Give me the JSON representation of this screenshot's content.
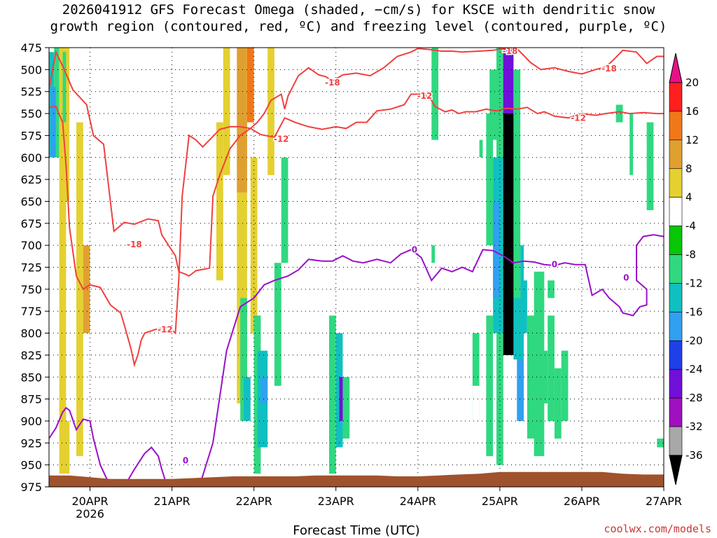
{
  "title": {
    "line1": "2026041912 GFS Forecast Omega (shaded, −cm/s) for KSCE with dendritic snow",
    "line2": "growth region (contoured, red, ºC) and freezing level (contoured, purple, ºC)"
  },
  "credit": "coolwx.com/models",
  "colors": {
    "dgz": "#f04040",
    "freezing": "#9a10c8",
    "ground": "#a0522d",
    "grid": "#000000"
  },
  "chart_data": {
    "type": "heatmap",
    "title": "2026041912 GFS Forecast Omega (shaded, −cm/s) for KSCE with dendritic snow growth region (contoured, red, ºC) and freezing level (contoured, purple, ºC)",
    "xlabel": "Forecast Time (UTC)",
    "ylabel": "",
    "x_ticks": [
      "20APR",
      "21APR",
      "22APR",
      "23APR",
      "24APR",
      "25APR",
      "26APR",
      "27APR"
    ],
    "x_tick_hours": [
      12,
      36,
      60,
      84,
      108,
      132,
      156,
      180
    ],
    "x_sublabel": "2026",
    "xlim_hours": [
      0,
      180
    ],
    "y_ticks": [
      475,
      500,
      525,
      550,
      575,
      600,
      625,
      650,
      675,
      700,
      725,
      750,
      775,
      800,
      825,
      850,
      875,
      900,
      925,
      950,
      975
    ],
    "ylim_hpa": [
      475,
      975
    ],
    "y_reversed": true,
    "grid": true,
    "colorbar": {
      "ticks": [
        20,
        16,
        12,
        8,
        4,
        -4,
        -8,
        -12,
        -16,
        -20,
        -24,
        -28,
        -32,
        -36
      ],
      "colors": [
        "#ff1f1f",
        "#f07818",
        "#e0a030",
        "#e4d030",
        "#ffffff",
        "#06c806",
        "#30d880",
        "#10c0c0",
        "#30a0f0",
        "#1f40e8",
        "#7010d8",
        "#a010c0",
        "#a8a8a8",
        "#000000"
      ],
      "top_color": "#e8108a"
    },
    "contours": [
      {
        "name": "dgz_minus18",
        "label": "-18",
        "color": "#f04040",
        "points": [
          [
            0,
            522
          ],
          [
            2,
            480
          ],
          [
            4,
            496
          ],
          [
            7,
            523
          ],
          [
            11,
            540
          ],
          [
            13,
            575
          ],
          [
            16,
            585
          ],
          [
            19,
            684
          ],
          [
            22,
            674
          ],
          [
            25,
            676
          ],
          [
            29,
            670
          ],
          [
            32,
            672
          ],
          [
            33,
            688
          ],
          [
            35,
            700
          ],
          [
            37,
            712
          ],
          [
            38,
            730
          ],
          [
            40,
            733
          ],
          [
            41,
            735
          ],
          [
            43,
            729
          ],
          [
            47,
            726
          ],
          [
            48,
            644
          ],
          [
            50,
            620
          ],
          [
            53,
            590
          ],
          [
            56,
            575
          ],
          [
            59,
            567
          ],
          [
            61,
            560
          ],
          [
            63,
            550
          ],
          [
            65,
            535
          ],
          [
            68,
            528
          ],
          [
            69,
            545
          ],
          [
            70,
            530
          ],
          [
            73,
            507
          ],
          [
            76,
            498
          ],
          [
            79,
            506
          ],
          [
            81,
            508
          ],
          [
            83,
            513
          ],
          [
            86,
            506
          ],
          [
            90,
            504
          ],
          [
            94,
            507
          ],
          [
            98,
            498
          ],
          [
            102,
            485
          ],
          [
            106,
            480
          ],
          [
            108,
            476
          ],
          [
            111,
            477
          ],
          [
            115,
            479
          ],
          [
            118,
            479
          ],
          [
            121,
            480
          ],
          [
            126,
            479
          ],
          [
            130,
            478
          ],
          [
            133,
            476
          ],
          [
            137,
            476
          ],
          [
            141,
            492
          ],
          [
            144,
            500
          ],
          [
            148,
            498
          ],
          [
            152,
            502
          ],
          [
            156,
            505
          ],
          [
            160,
            500
          ],
          [
            163,
            497
          ],
          [
            165,
            490
          ],
          [
            168,
            478
          ],
          [
            172,
            480
          ],
          [
            175,
            493
          ],
          [
            178,
            485
          ],
          [
            180,
            485
          ]
        ],
        "label_points": [
          [
            83,
            515
          ],
          [
            135,
            479
          ],
          [
            164,
            499
          ],
          [
            25,
            699
          ]
        ]
      },
      {
        "name": "dgz_minus12",
        "label": "-12",
        "color": "#f04040",
        "points": [
          [
            0,
            543
          ],
          [
            2,
            542
          ],
          [
            4,
            560
          ],
          [
            5,
            610
          ],
          [
            6,
            680
          ],
          [
            8,
            735
          ],
          [
            10,
            750
          ],
          [
            12,
            745
          ],
          [
            15,
            748
          ],
          [
            18,
            768
          ],
          [
            21,
            777
          ],
          [
            22,
            790
          ],
          [
            24,
            818
          ],
          [
            25,
            836
          ],
          [
            26,
            825
          ],
          [
            27,
            808
          ],
          [
            28,
            800
          ],
          [
            31,
            796
          ],
          [
            35,
            793
          ],
          [
            37,
            800
          ],
          [
            38,
            738
          ],
          [
            39,
            644
          ],
          [
            41,
            575
          ],
          [
            43,
            580
          ],
          [
            45,
            588
          ],
          [
            47,
            580
          ],
          [
            50,
            568
          ],
          [
            53,
            565
          ],
          [
            56,
            565
          ],
          [
            59,
            567
          ],
          [
            62,
            574
          ],
          [
            66,
            577
          ],
          [
            69,
            555
          ],
          [
            72,
            560
          ],
          [
            76,
            565
          ],
          [
            80,
            568
          ],
          [
            84,
            565
          ],
          [
            87,
            567
          ],
          [
            90,
            560
          ],
          [
            93,
            560
          ],
          [
            96,
            547
          ],
          [
            100,
            545
          ],
          [
            104,
            540
          ],
          [
            106,
            528
          ],
          [
            110,
            528
          ],
          [
            112,
            535
          ],
          [
            113,
            542
          ],
          [
            116,
            548
          ],
          [
            118,
            546
          ],
          [
            120,
            550
          ],
          [
            122,
            548
          ],
          [
            125,
            548
          ],
          [
            128,
            545
          ],
          [
            131,
            547
          ],
          [
            134,
            544
          ],
          [
            137,
            545
          ],
          [
            140,
            543
          ],
          [
            143,
            550
          ],
          [
            145,
            548
          ],
          [
            148,
            553
          ],
          [
            152,
            555
          ],
          [
            156,
            550
          ],
          [
            160,
            552
          ],
          [
            163,
            550
          ],
          [
            167,
            548
          ],
          [
            170,
            550
          ],
          [
            174,
            549
          ],
          [
            178,
            550
          ],
          [
            180,
            550
          ]
        ],
        "label_points": [
          [
            68,
            579
          ],
          [
            110,
            530
          ],
          [
            155,
            555
          ],
          [
            34,
            796
          ]
        ]
      },
      {
        "name": "freezing_0",
        "label": "0",
        "color": "#9a10c8",
        "points": [
          [
            0,
            920
          ],
          [
            2,
            908
          ],
          [
            4,
            890
          ],
          [
            5,
            885
          ],
          [
            6,
            888
          ],
          [
            8,
            910
          ],
          [
            10,
            898
          ],
          [
            12,
            900
          ],
          [
            13,
            920
          ],
          [
            15,
            950
          ],
          [
            18,
            975
          ],
          [
            22,
            975
          ],
          [
            25,
            955
          ],
          [
            28,
            937
          ],
          [
            30,
            930
          ],
          [
            32,
            940
          ],
          [
            33,
            955
          ],
          [
            34,
            967
          ],
          [
            33,
            975
          ],
          [
            38,
            975
          ],
          [
            44,
            975
          ],
          [
            48,
            925
          ],
          [
            52,
            820
          ],
          [
            56,
            770
          ],
          [
            60,
            760
          ],
          [
            63,
            745
          ],
          [
            66,
            740
          ],
          [
            70,
            735
          ],
          [
            73,
            728
          ],
          [
            76,
            716
          ],
          [
            80,
            718
          ],
          [
            83,
            718
          ],
          [
            86,
            712
          ],
          [
            89,
            718
          ],
          [
            92,
            720
          ],
          [
            96,
            716
          ],
          [
            100,
            720
          ],
          [
            103,
            710
          ],
          [
            106,
            705
          ],
          [
            109,
            714
          ],
          [
            112,
            740
          ],
          [
            115,
            726
          ],
          [
            118,
            730
          ],
          [
            121,
            725
          ],
          [
            124,
            730
          ],
          [
            127,
            705
          ],
          [
            130,
            706
          ],
          [
            133,
            712
          ],
          [
            136,
            720
          ],
          [
            139,
            718
          ],
          [
            142,
            719
          ],
          [
            145,
            722
          ],
          [
            148,
            723
          ],
          [
            151,
            720
          ],
          [
            154,
            722
          ],
          [
            157,
            722
          ],
          [
            159,
            757
          ],
          [
            162,
            750
          ],
          [
            164,
            760
          ],
          [
            167,
            770
          ],
          [
            168,
            777
          ],
          [
            171,
            780
          ],
          [
            173,
            770
          ],
          [
            175,
            768
          ],
          [
            175,
            750
          ],
          [
            172,
            740
          ],
          [
            172,
            700
          ],
          [
            174,
            690
          ],
          [
            177,
            688
          ],
          [
            180,
            690
          ]
        ],
        "label_points": [
          [
            40,
            945
          ],
          [
            107,
            705
          ],
          [
            148,
            722
          ],
          [
            169,
            737
          ]
        ]
      }
    ],
    "shaded_features": [
      {
        "name": "strong_ascent_core",
        "hour_range": [
          133,
          136
        ],
        "p_range": [
          550,
          825
        ],
        "value_min": -36
      }
    ]
  }
}
